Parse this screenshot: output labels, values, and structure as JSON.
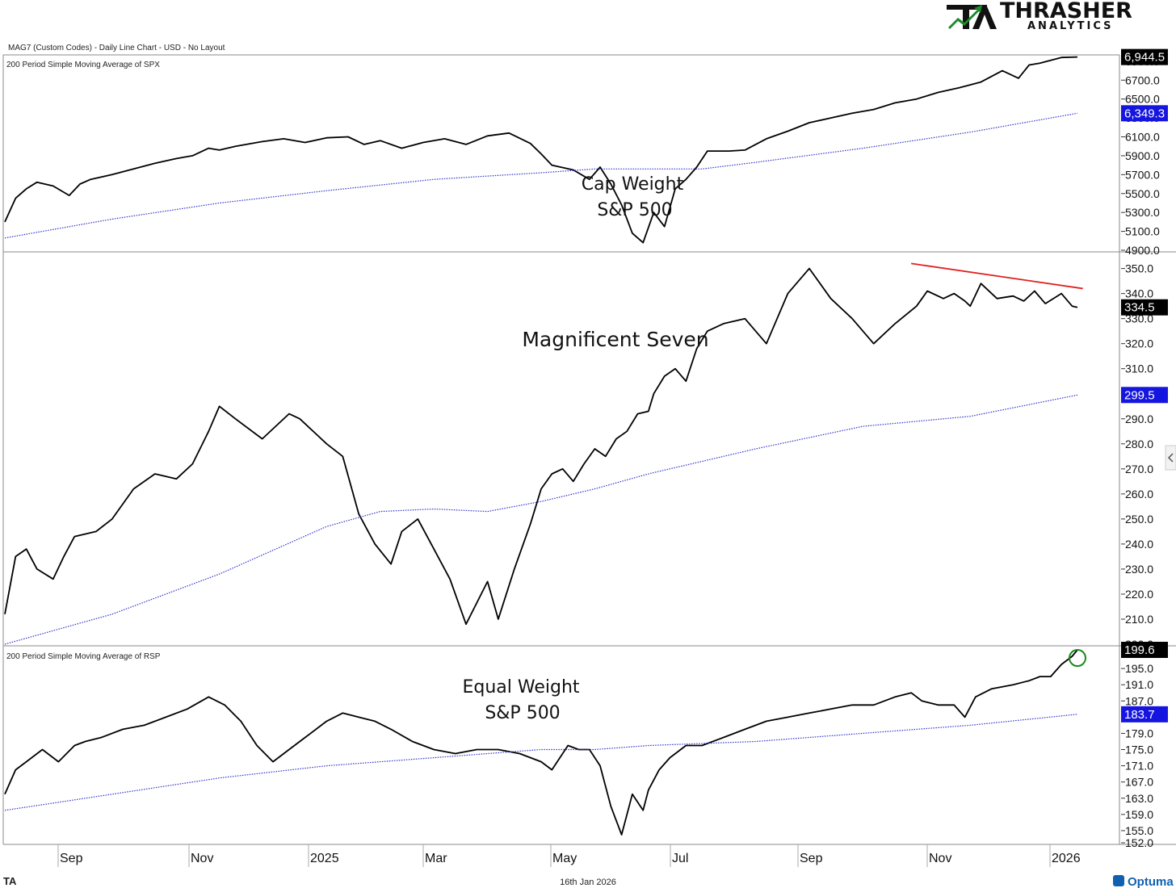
{
  "header": {
    "chart_title": "MAG7 (Custom Codes) - Daily Line Chart - USD - No Layout",
    "logo_main": "THRASHER",
    "logo_sub": "ANALYTICS"
  },
  "footer": {
    "date": "16th Jan 2026",
    "brand": "Optuma",
    "left_mark": "TA"
  },
  "colors": {
    "price_line": "#000000",
    "sma_line": "#3333cc",
    "trendline": "#e02020",
    "circle": "#1a8a1a",
    "last_tag": "#000000",
    "sma_tag": "#1515e0"
  },
  "chart_data": [
    {
      "type": "line",
      "panel": "top",
      "title": "200 Period Simple Moving Average of SPX",
      "annotation": [
        "Cap Weight",
        "S&P 500"
      ],
      "y_ticks": [
        4900,
        5100,
        5300,
        5500,
        5700,
        5900,
        6100,
        6300,
        6500,
        6700,
        6900
      ],
      "y_tick_labels": [
        "4900.0",
        "5100.0",
        "5300.0",
        "5500.0",
        "5700.0",
        "5900.0",
        "6100.0",
        "6300.0",
        "6500.0",
        "6700.0",
        "6900.0"
      ],
      "ylim": [
        4900,
        6950
      ],
      "last_value": 6944.5,
      "last_label": "6,944.5",
      "sma_value": 6349.3,
      "sma_label": "6,349.3",
      "series": [
        {
          "name": "SPX",
          "x": [
            0,
            0.01,
            0.02,
            0.03,
            0.045,
            0.06,
            0.07,
            0.08,
            0.1,
            0.12,
            0.14,
            0.16,
            0.175,
            0.19,
            0.2,
            0.215,
            0.24,
            0.26,
            0.28,
            0.3,
            0.32,
            0.335,
            0.35,
            0.37,
            0.39,
            0.41,
            0.43,
            0.45,
            0.47,
            0.49,
            0.5,
            0.51,
            0.53,
            0.545,
            0.555,
            0.565,
            0.575,
            0.585,
            0.595,
            0.605,
            0.615,
            0.625,
            0.635,
            0.645,
            0.655,
            0.675,
            0.69,
            0.71,
            0.73,
            0.75,
            0.77,
            0.79,
            0.81,
            0.83,
            0.85,
            0.87,
            0.89,
            0.91,
            0.93,
            0.945,
            0.955,
            0.965,
            0.975,
            0.985,
            1.0
          ],
          "values": [
            5200,
            5450,
            5550,
            5620,
            5580,
            5480,
            5600,
            5650,
            5700,
            5760,
            5820,
            5870,
            5900,
            5980,
            5960,
            6000,
            6050,
            6080,
            6040,
            6090,
            6100,
            6020,
            6060,
            5980,
            6040,
            6080,
            6020,
            6110,
            6140,
            6030,
            5920,
            5800,
            5750,
            5650,
            5780,
            5600,
            5380,
            5080,
            4980,
            5300,
            5150,
            5550,
            5650,
            5780,
            5950,
            5950,
            5960,
            6080,
            6160,
            6250,
            6300,
            6350,
            6390,
            6460,
            6500,
            6570,
            6620,
            6680,
            6800,
            6720,
            6860,
            6880,
            6910,
            6940,
            6944.5
          ]
        },
        {
          "name": "SMA 200",
          "x": [
            0,
            0.1,
            0.2,
            0.3,
            0.4,
            0.5,
            0.55,
            0.6,
            0.65,
            0.7,
            0.8,
            0.9,
            1.0
          ],
          "values": [
            5030,
            5230,
            5400,
            5530,
            5650,
            5720,
            5760,
            5760,
            5760,
            5830,
            5980,
            6150,
            6349.3
          ]
        }
      ]
    },
    {
      "type": "line",
      "panel": "middle",
      "title": "",
      "annotation": [
        "Magnificent Seven"
      ],
      "y_ticks": [
        200,
        210,
        220,
        230,
        240,
        250,
        260,
        270,
        280,
        290,
        300,
        310,
        320,
        330,
        340,
        350
      ],
      "y_tick_labels": [
        "200.0",
        "210.0",
        "220.0",
        "230.0",
        "240.0",
        "250.0",
        "260.0",
        "270.0",
        "280.0",
        "290.0",
        "300.0",
        "310.0",
        "320.0",
        "330.0",
        "340.0",
        "350.0"
      ],
      "ylim": [
        200,
        356
      ],
      "last_value": 334.5,
      "last_label": "334.5",
      "sma_value": 299.5,
      "sma_label": "299.5",
      "trendline": {
        "x": [
          0.845,
          1.005
        ],
        "values": [
          352,
          342
        ]
      },
      "series": [
        {
          "name": "MAG7",
          "x": [
            0,
            0.01,
            0.02,
            0.03,
            0.045,
            0.055,
            0.065,
            0.075,
            0.085,
            0.1,
            0.12,
            0.14,
            0.16,
            0.175,
            0.19,
            0.2,
            0.215,
            0.24,
            0.255,
            0.265,
            0.275,
            0.29,
            0.3,
            0.315,
            0.33,
            0.345,
            0.36,
            0.37,
            0.385,
            0.4,
            0.415,
            0.43,
            0.45,
            0.46,
            0.475,
            0.49,
            0.5,
            0.51,
            0.52,
            0.53,
            0.54,
            0.55,
            0.56,
            0.57,
            0.58,
            0.59,
            0.6,
            0.605,
            0.615,
            0.625,
            0.635,
            0.645,
            0.655,
            0.67,
            0.69,
            0.71,
            0.73,
            0.75,
            0.77,
            0.79,
            0.81,
            0.83,
            0.85,
            0.86,
            0.875,
            0.885,
            0.895,
            0.9,
            0.91,
            0.925,
            0.94,
            0.95,
            0.96,
            0.97,
            0.985,
            0.995,
            1.0
          ],
          "values": [
            212,
            235,
            238,
            230,
            226,
            235,
            243,
            244,
            245,
            250,
            262,
            268,
            266,
            272,
            285,
            295,
            290,
            282,
            288,
            292,
            290,
            284,
            280,
            275,
            252,
            240,
            232,
            245,
            250,
            238,
            226,
            208,
            225,
            210,
            230,
            248,
            262,
            268,
            270,
            265,
            272,
            278,
            275,
            282,
            285,
            292,
            293,
            300,
            307,
            310,
            305,
            318,
            325,
            328,
            330,
            320,
            340,
            350,
            338,
            330,
            320,
            328,
            335,
            341,
            338,
            340,
            337,
            335,
            344,
            338,
            339,
            337,
            341,
            336,
            340,
            335,
            334.5
          ]
        },
        {
          "name": "SMA 200",
          "x": [
            0,
            0.1,
            0.2,
            0.3,
            0.35,
            0.4,
            0.45,
            0.5,
            0.55,
            0.6,
            0.7,
            0.8,
            0.9,
            1.0
          ],
          "values": [
            200,
            212,
            228,
            247,
            253,
            254,
            253,
            257,
            262,
            268,
            278,
            287,
            291,
            299.5
          ]
        }
      ]
    },
    {
      "type": "line",
      "panel": "bottom",
      "title": "200 Period Simple Moving Average of RSP",
      "annotation": [
        "Equal Weight",
        "S&P 500"
      ],
      "y_ticks": [
        152,
        155,
        159,
        163,
        167,
        171,
        175,
        179,
        183,
        187,
        191,
        195,
        199
      ],
      "y_tick_labels": [
        "152.0",
        "155.0",
        "159.0",
        "163.0",
        "167.0",
        "171.0",
        "175.0",
        "179.0",
        "183.0",
        "187.0",
        "191.0",
        "195.0",
        "199.0"
      ],
      "ylim": [
        152,
        200.2
      ],
      "last_value": 199.6,
      "last_label": "199.6",
      "sma_value": 183.7,
      "sma_label": "183.7",
      "circle_marker": {
        "x": 1.0,
        "value": 197.6
      },
      "series": [
        {
          "name": "RSP",
          "x": [
            0,
            0.01,
            0.02,
            0.035,
            0.05,
            0.065,
            0.075,
            0.09,
            0.11,
            0.13,
            0.15,
            0.17,
            0.19,
            0.205,
            0.22,
            0.235,
            0.25,
            0.265,
            0.28,
            0.3,
            0.315,
            0.33,
            0.345,
            0.36,
            0.38,
            0.4,
            0.42,
            0.44,
            0.46,
            0.48,
            0.5,
            0.51,
            0.525,
            0.535,
            0.545,
            0.555,
            0.565,
            0.575,
            0.585,
            0.595,
            0.6,
            0.61,
            0.62,
            0.635,
            0.65,
            0.67,
            0.69,
            0.71,
            0.73,
            0.75,
            0.77,
            0.79,
            0.81,
            0.83,
            0.845,
            0.855,
            0.87,
            0.885,
            0.895,
            0.905,
            0.92,
            0.94,
            0.955,
            0.965,
            0.975,
            0.985,
            0.995,
            1.0
          ],
          "values": [
            164,
            170,
            172,
            175,
            172,
            176,
            177,
            178,
            180,
            181,
            183,
            185,
            188,
            186,
            182,
            176,
            172,
            175,
            178,
            182,
            184,
            183,
            182,
            180,
            177,
            175,
            174,
            175,
            175,
            174,
            172,
            170,
            176,
            175,
            175,
            171,
            161,
            154,
            164,
            160,
            165,
            170,
            173,
            176,
            176,
            178,
            180,
            182,
            183,
            184,
            185,
            186,
            186,
            188,
            189,
            187,
            186,
            186,
            183,
            188,
            190,
            191,
            192,
            193,
            193,
            196,
            198,
            199.6
          ]
        },
        {
          "name": "SMA 200",
          "x": [
            0,
            0.1,
            0.2,
            0.3,
            0.4,
            0.45,
            0.5,
            0.55,
            0.6,
            0.7,
            0.8,
            0.9,
            1.0
          ],
          "values": [
            160,
            164,
            168,
            171,
            173,
            174,
            175,
            175,
            176,
            177,
            179,
            181,
            183.7
          ]
        }
      ]
    }
  ],
  "x_axis": {
    "labels": [
      "Sep",
      "Nov",
      "2025",
      "Mar",
      "May",
      "Jul",
      "Sep",
      "Nov",
      "2026"
    ]
  }
}
